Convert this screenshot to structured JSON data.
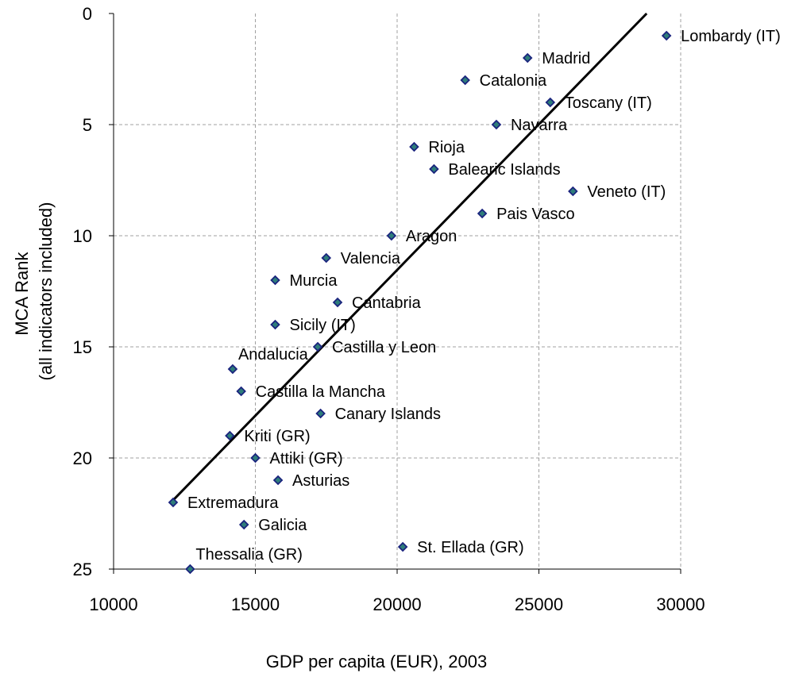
{
  "chart_data": {
    "type": "scatter",
    "title": "",
    "xlabel": "GDP per capita (EUR), 2003",
    "ylabel_lines": [
      "MCA Rank",
      "(all indicators included)"
    ],
    "xlim": [
      10000,
      30000
    ],
    "ylim": [
      0,
      25
    ],
    "y_inverted": true,
    "x_ticks": [
      10000,
      15000,
      20000,
      25000,
      30000
    ],
    "y_ticks": [
      0,
      5,
      10,
      15,
      20,
      25
    ],
    "grid": true,
    "marker_color": "#1a237e",
    "marker_fill": "#2e7d7a",
    "trendline": {
      "x": [
        12100,
        28800
      ],
      "y": [
        21.9,
        0
      ]
    },
    "points": [
      {
        "label": "Lombardy (IT)",
        "x": 29500,
        "y": 1
      },
      {
        "label": "Madrid",
        "x": 24600,
        "y": 2
      },
      {
        "label": "Catalonia",
        "x": 22400,
        "y": 3
      },
      {
        "label": "Toscany (IT)",
        "x": 25400,
        "y": 4
      },
      {
        "label": "Navarra",
        "x": 23500,
        "y": 5
      },
      {
        "label": "Rioja",
        "x": 20600,
        "y": 6
      },
      {
        "label": "Balearic Islands",
        "x": 21300,
        "y": 7
      },
      {
        "label": "Veneto (IT)",
        "x": 26200,
        "y": 8
      },
      {
        "label": "Pais Vasco",
        "x": 23000,
        "y": 9
      },
      {
        "label": "Aragon",
        "x": 19800,
        "y": 10
      },
      {
        "label": "Valencia",
        "x": 17500,
        "y": 11
      },
      {
        "label": "Murcia",
        "x": 15700,
        "y": 12
      },
      {
        "label": "Cantabria",
        "x": 17900,
        "y": 13
      },
      {
        "label": "Sicily (IT)",
        "x": 15700,
        "y": 14
      },
      {
        "label": "Castilla y Leon",
        "x": 17200,
        "y": 15
      },
      {
        "label": "Andalucia",
        "x": 14200,
        "y": 16
      },
      {
        "label": "Castilla la Mancha",
        "x": 14500,
        "y": 17
      },
      {
        "label": "Canary Islands",
        "x": 17300,
        "y": 18
      },
      {
        "label": "Kriti (GR)",
        "x": 14100,
        "y": 19
      },
      {
        "label": "Attiki (GR)",
        "x": 15000,
        "y": 20
      },
      {
        "label": "Asturias",
        "x": 15800,
        "y": 21
      },
      {
        "label": "Extremadura",
        "x": 12100,
        "y": 22
      },
      {
        "label": "Galicia",
        "x": 14600,
        "y": 23
      },
      {
        "label": "St. Ellada (GR)",
        "x": 20200,
        "y": 24
      },
      {
        "label": "Thessalia (GR)",
        "x": 12700,
        "y": 25
      }
    ]
  }
}
